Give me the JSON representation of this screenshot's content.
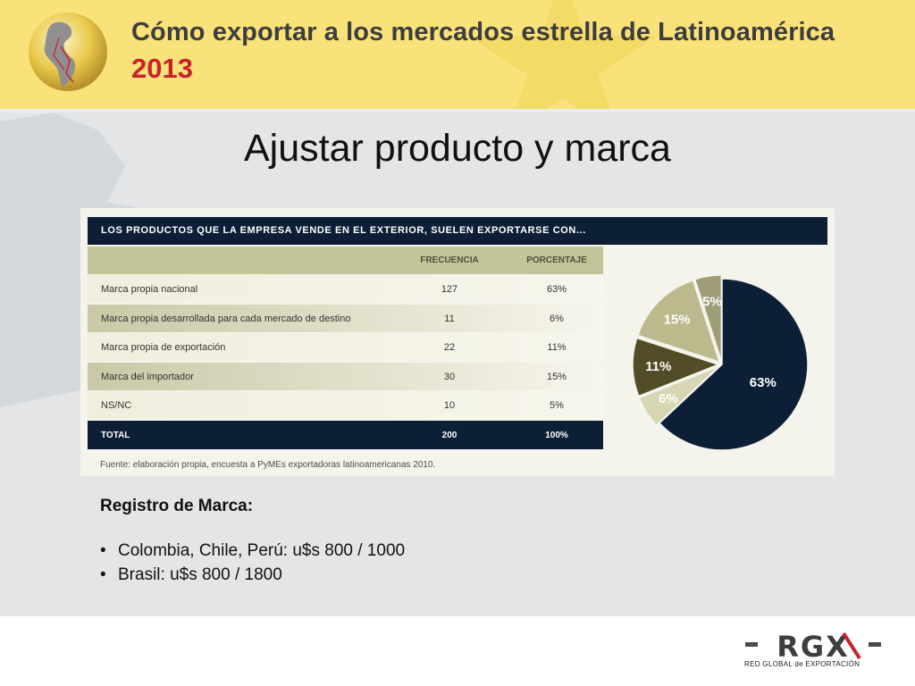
{
  "header": {
    "title": "Cómo exportar a los mercados estrella de Latinoamérica",
    "year": "2013",
    "accent": "#c7222a"
  },
  "slide_title": "Ajustar producto y marca",
  "figure": {
    "table_title": "LOS PRODUCTOS QUE LA EMPRESA VENDE EN EL EXTERIOR, SUELEN EXPORTARSE CON...",
    "col_frecuencia": "FRECUENCIA",
    "col_porcentaje": "PORCENTAJE",
    "rows": [
      {
        "label": "Marca propia nacional",
        "freq": "127",
        "pct": "63%"
      },
      {
        "label": "Marca propia desarrollada para cada mercado de destino",
        "freq": "11",
        "pct": "6%"
      },
      {
        "label": "Marca propia de exportación",
        "freq": "22",
        "pct": "11%"
      },
      {
        "label": "Marca del importador",
        "freq": "30",
        "pct": "15%"
      },
      {
        "label": "NS/NC",
        "freq": "10",
        "pct": "5%"
      }
    ],
    "total": {
      "label": "TOTAL",
      "freq": "200",
      "pct": "100%"
    },
    "source": "Fuente: elaboración propia, encuesta a PyMEs exportadoras latinoamericanas 2010."
  },
  "chart_data": {
    "type": "pie",
    "categories": [
      "Marca propia nacional",
      "Marca propia desarrollada para cada mercado de destino",
      "Marca propia de exportación",
      "Marca del importador",
      "NS/NC"
    ],
    "values": [
      63,
      6,
      11,
      15,
      5
    ],
    "labels": [
      "63%",
      "6%",
      "11%",
      "15%",
      "5%"
    ],
    "colors": [
      "#0c1f36",
      "#d7d5b2",
      "#524d26",
      "#bcba8c",
      "#9f9c78"
    ],
    "start": "12 o'clock, clockwise"
  },
  "registro": {
    "title": "Registro de Marca:",
    "items": [
      "Colombia, Chile, Perú: u$s 800 / 1000",
      "Brasil: u$s 800 / 1800"
    ]
  },
  "footer": {
    "logo": "RGX",
    "logo_caption": "RED GLOBAL de EXPORTACIÓN"
  }
}
